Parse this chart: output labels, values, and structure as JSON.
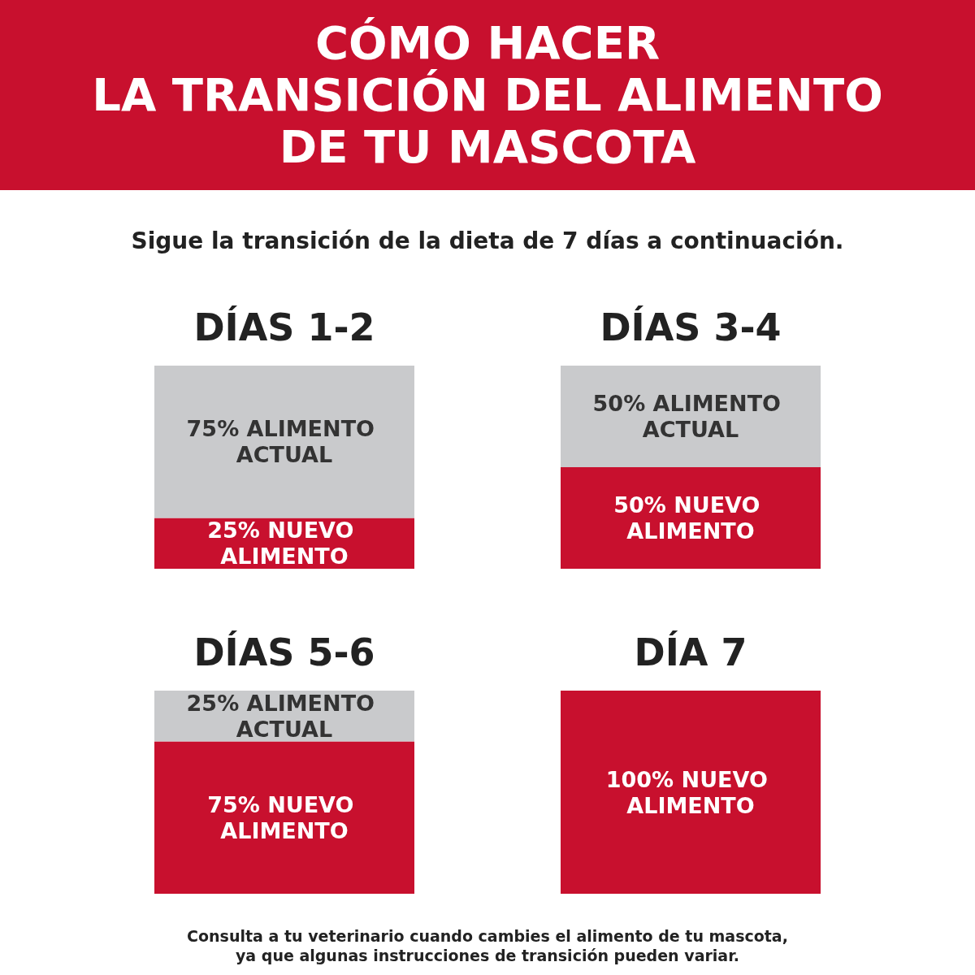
{
  "chart_data": [
    {
      "type": "bar",
      "title": "CÓMO HACER\nLA TRANSICIÓN DEL ALIMENTO\nDE TU MASCOTA",
      "subtitle": "Sigue la transición de la dieta de 7 días a continuación.",
      "categories": [
        "DÍAS 1-2",
        "DÍAS 3-4"
      ],
      "stacked": true,
      "series": [
        {
          "color": "#c8102e",
          "values": [
            25,
            50
          ],
          "value_labels": [
            "25% NUEVO ALIMENTO",
            "50% NUEVO ALIMENTO"
          ]
        },
        {
          "color": "#c9cacc",
          "values": [
            75,
            50
          ],
          "value_labels": [
            "75% ALIMENTO ACTUAL",
            "50% ALIMENTO ACTUAL"
          ]
        }
      ]
    },
    {
      "type": "bar",
      "categories": [
        "DÍAS 5-6",
        "DÍA 7"
      ],
      "stacked": true,
      "series": [
        {
          "color": "#c8102e",
          "values": [
            75,
            100
          ],
          "value_labels": [
            "75% NUEVO ALIMENTO",
            "100% NUEVO ALIMENTO"
          ]
        },
        {
          "color": "#c9cacc",
          "values": [
            25,
            0
          ],
          "value_labels": [
            "25% ALIMENTO ACTUAL",
            null
          ]
        }
      ],
      "annotations": [
        "Consulta a tu veterinario cuando cambies el alimento de tu mascota,\nya que algunas instrucciones de transición pueden variar."
      ]
    }
  ]
}
